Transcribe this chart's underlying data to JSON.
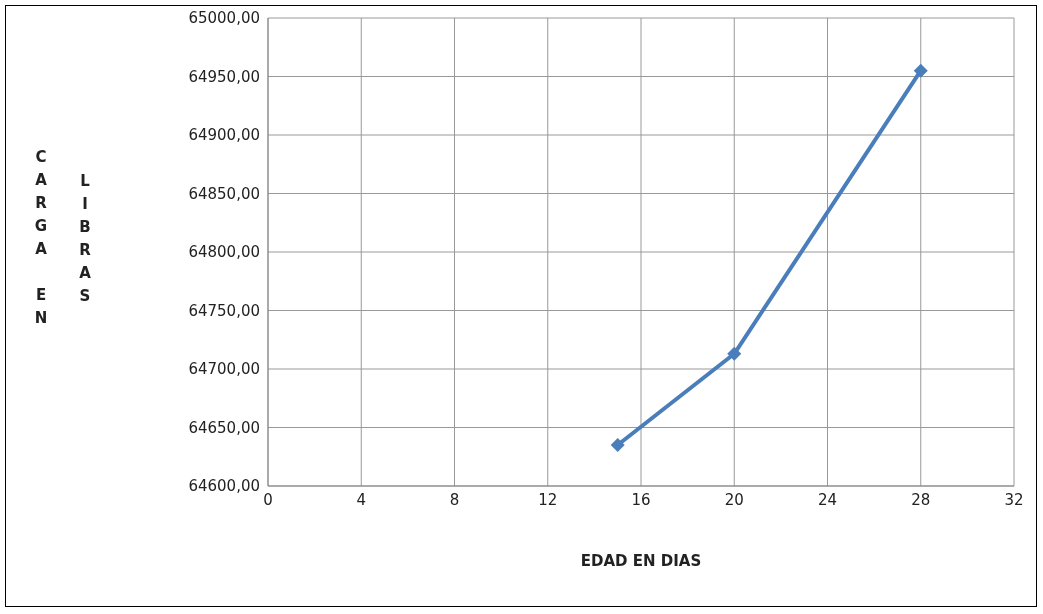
{
  "chart_data": {
    "type": "line",
    "xlabel": "EDAD EN DIAS",
    "ylabel": "CARGA EN LIBRAS",
    "x": [
      15,
      20,
      28
    ],
    "series": [
      {
        "color": "#4a7ebb",
        "values": [
          64635,
          64713,
          64955
        ]
      }
    ],
    "xlim": [
      0,
      32
    ],
    "xticks": [
      0,
      4,
      8,
      12,
      16,
      20,
      24,
      28,
      32
    ],
    "ylim": [
      64600,
      65000
    ],
    "yticks": [
      {
        "value": 64600,
        "label": "64600,00"
      },
      {
        "value": 64650,
        "label": "64650,00"
      },
      {
        "value": 64700,
        "label": "64700,00"
      },
      {
        "value": 64750,
        "label": "64750,00"
      },
      {
        "value": 64800,
        "label": "64800,00"
      },
      {
        "value": 64850,
        "label": "64850,00"
      },
      {
        "value": 64900,
        "label": "64900,00"
      },
      {
        "value": 64950,
        "label": "64950,00"
      },
      {
        "value": 65000,
        "label": "65000,00"
      }
    ],
    "grid": true,
    "marker": "diamond",
    "line_style": "solid",
    "legend": false
  }
}
